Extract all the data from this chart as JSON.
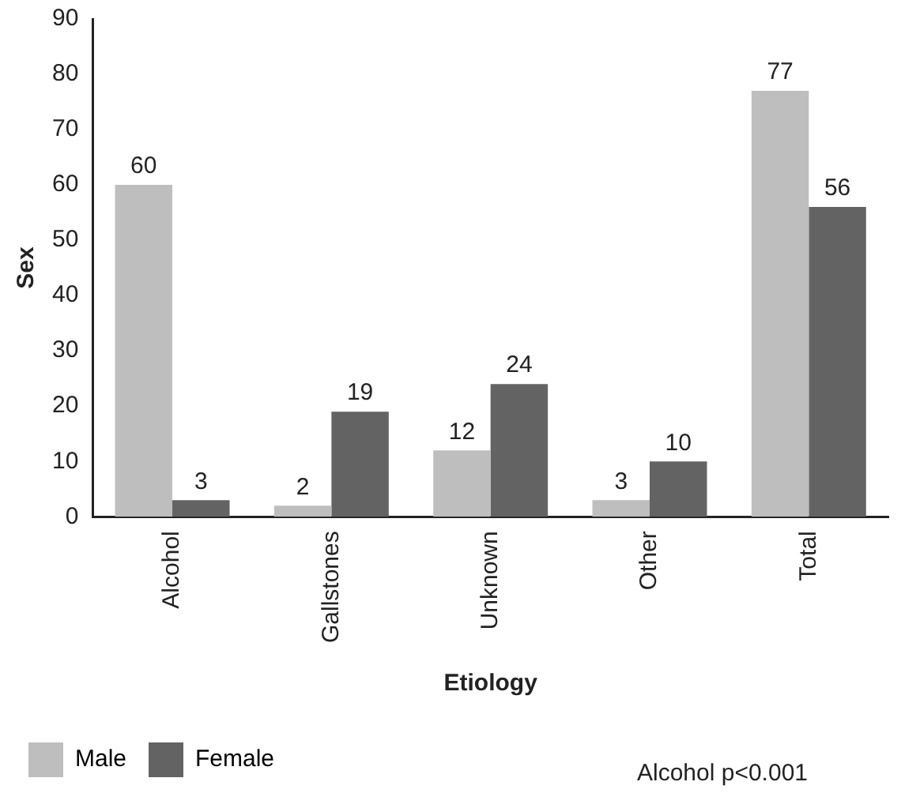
{
  "chart_data": {
    "type": "bar",
    "xlabel": "Etiology",
    "ylabel": "Sex",
    "categories": [
      "Alcohol",
      "Gallstones",
      "Unknown",
      "Other",
      "Total"
    ],
    "series": [
      {
        "name": "Male",
        "color": "#bebebe",
        "values": [
          60,
          2,
          12,
          3,
          77
        ]
      },
      {
        "name": "Female",
        "color": "#636363",
        "values": [
          3,
          19,
          24,
          10,
          56
        ]
      }
    ],
    "ylim": [
      0,
      90
    ],
    "yticks": [
      0,
      10,
      20,
      30,
      40,
      50,
      60,
      70,
      80,
      90
    ],
    "grid": false,
    "legend": "bottom",
    "data_labels": true,
    "annotations": [
      "Alcohol p<0.001"
    ]
  }
}
